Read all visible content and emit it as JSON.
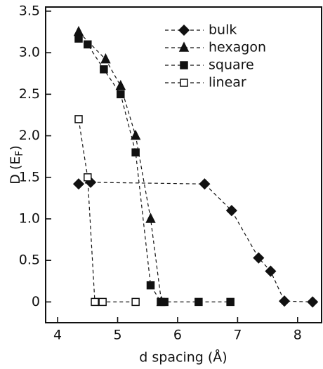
{
  "chart_data": {
    "type": "line",
    "xlabel": "d spacing (Å)",
    "ylabel": [
      "D (E",
      "F",
      ")"
    ],
    "xlim": [
      3.8,
      8.4
    ],
    "ylim": [
      -0.25,
      3.55
    ],
    "xticks": [
      4,
      5,
      6,
      7,
      8
    ],
    "yticks": [
      0,
      0.5,
      {
        "value": 1,
        "label": "1.0"
      },
      1.5,
      {
        "value": 2,
        "label": "2.0"
      },
      2.5,
      {
        "value": 3,
        "label": "3.0"
      },
      3.5
    ],
    "linestyle": "dashed",
    "legend": "upper right",
    "series": [
      {
        "name": "bulk",
        "marker": "diamond",
        "color": "#111",
        "x": [
          4.35,
          4.55,
          6.45,
          6.9,
          7.35,
          7.55,
          7.78,
          8.25
        ],
        "values": [
          1.42,
          1.44,
          1.42,
          1.1,
          0.53,
          0.37,
          0.01,
          0
        ]
      },
      {
        "name": "hexagon",
        "marker": "triangle",
        "color": "#111",
        "x": [
          4.35,
          4.8,
          5.05,
          5.3,
          5.55,
          5.73
        ],
        "values": [
          3.25,
          2.92,
          2.6,
          2.0,
          1.0,
          0
        ]
      },
      {
        "name": "square",
        "marker": "square",
        "color": "#111",
        "x": [
          4.35,
          4.5,
          4.77,
          5.05,
          5.3,
          5.55,
          5.72,
          5.78,
          6.35,
          6.88
        ],
        "values": [
          3.17,
          3.1,
          2.8,
          2.5,
          1.8,
          0.2,
          0,
          0,
          0,
          0
        ]
      },
      {
        "name": "linear",
        "marker": "open-square",
        "color": "#111",
        "x": [
          4.35,
          4.5,
          4.62,
          4.75,
          5.3
        ],
        "values": [
          2.2,
          1.5,
          0,
          0,
          0
        ]
      }
    ]
  }
}
